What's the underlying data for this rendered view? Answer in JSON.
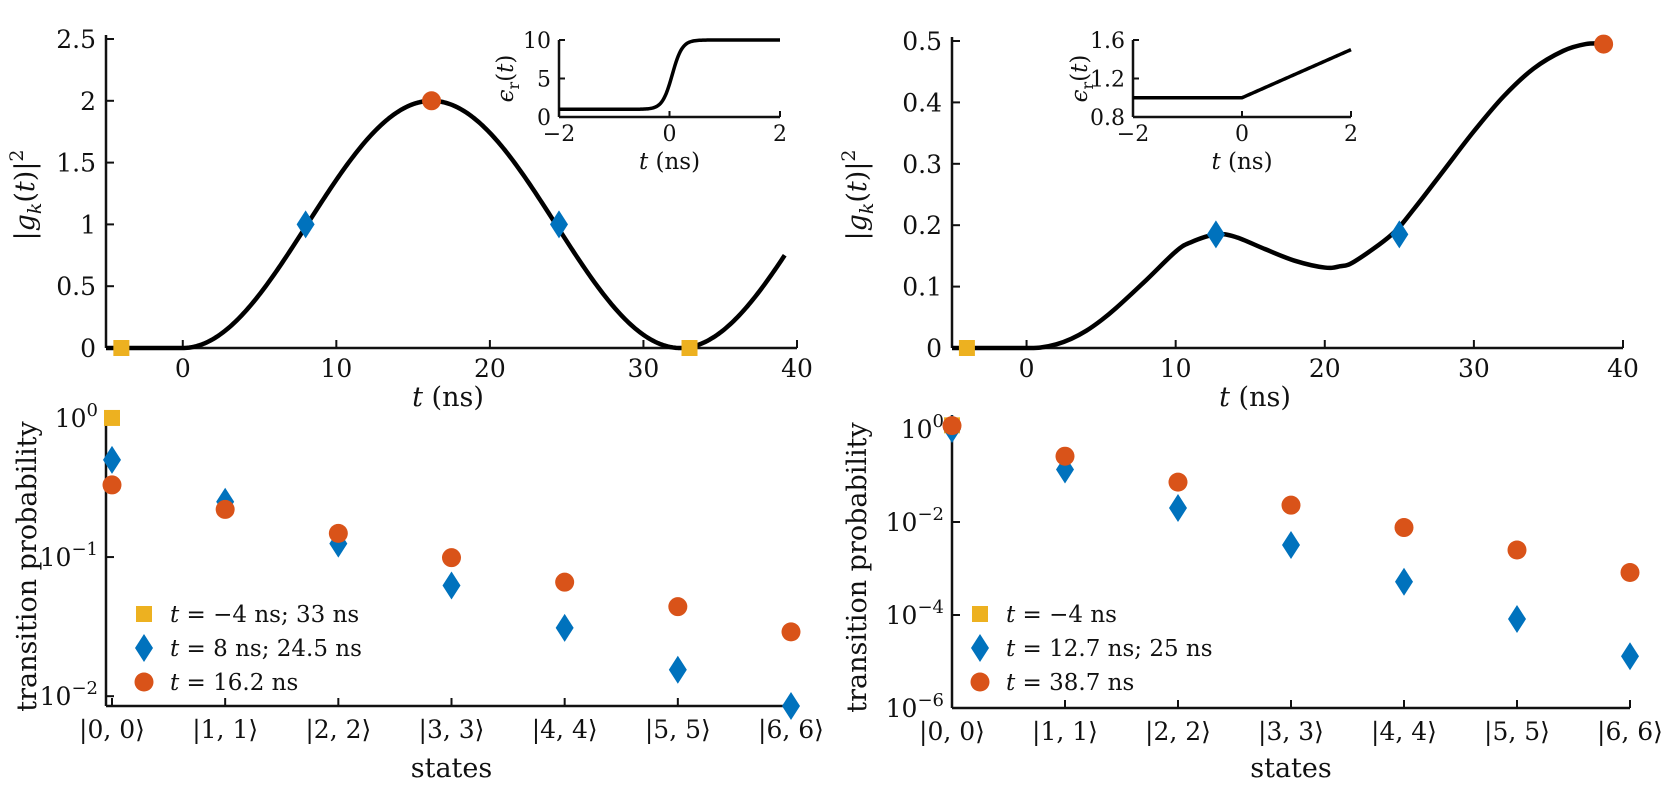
{
  "colors": {
    "square": "#EDB120",
    "diamond": "#0072BD",
    "circle": "#D95319",
    "line": "#000000"
  },
  "chart_data": [
    {
      "type": "line",
      "id": "top-left",
      "ylabel": "|g_k(t)|^2",
      "xlabel": "t (ns)",
      "xlim": [
        -5,
        40
      ],
      "ylim": [
        0,
        2.5
      ],
      "xticks": [
        0,
        10,
        20,
        30,
        40
      ],
      "xtick_labels": [
        "0",
        "10",
        "20",
        "30",
        "40"
      ],
      "yticks": [
        0,
        0.5,
        1,
        1.5,
        2,
        2.5
      ],
      "ytick_labels": [
        "0",
        "0.5",
        "1",
        "1.5",
        "2",
        "2.5"
      ],
      "curve": {
        "model": "2*sin^2(pi*t/32.4) for t>=0, 0 before",
        "amplitude": 2.0,
        "period_ns": 32.4,
        "t_end": 39.2
      },
      "markers": [
        {
          "shape": "square",
          "x": -4,
          "y": 0
        },
        {
          "shape": "square",
          "x": 33,
          "y": 0
        },
        {
          "shape": "diamond",
          "x": 8,
          "y": 1.0
        },
        {
          "shape": "diamond",
          "x": 24.5,
          "y": 1.0
        },
        {
          "shape": "circle",
          "x": 16.2,
          "y": 2.0
        }
      ],
      "inset": {
        "ylabel": "ε_r(t)",
        "xlabel": "t (ns)",
        "xlim": [
          -2,
          2
        ],
        "ylim": [
          0,
          10
        ],
        "xticks": [
          -2,
          0,
          2
        ],
        "xtick_labels": [
          "−2",
          "0",
          "2"
        ],
        "yticks": [
          0,
          5,
          10
        ],
        "ytick_labels": [
          "0",
          "5",
          "10"
        ],
        "curve": {
          "model": "1 + 9/(1+exp(-(t-0.05)/0.09))"
        }
      }
    },
    {
      "type": "line",
      "id": "top-right",
      "ylabel": "|g_k(t)|^2",
      "xlabel": "t (ns)",
      "xlim": [
        -5,
        40
      ],
      "ylim": [
        0,
        0.5
      ],
      "xticks": [
        0,
        10,
        20,
        30,
        40
      ],
      "xtick_labels": [
        "0",
        "10",
        "20",
        "30",
        "40"
      ],
      "yticks": [
        0,
        0.1,
        0.2,
        0.3,
        0.4,
        0.5
      ],
      "ytick_labels": [
        "0",
        "0.1",
        "0.2",
        "0.3",
        "0.4",
        "0.5"
      ],
      "curve": {
        "model": "smooth spline",
        "x": [
          -5,
          -4,
          0,
          1,
          2,
          3,
          4,
          5,
          6,
          8,
          10,
          11,
          12.7,
          14,
          16,
          18,
          20,
          21,
          22,
          24.5,
          26,
          28,
          30,
          32,
          34,
          36,
          37.5,
          38.7
        ],
        "y": [
          0,
          0,
          0,
          0.001,
          0.006,
          0.015,
          0.028,
          0.045,
          0.065,
          0.11,
          0.157,
          0.172,
          0.185,
          0.181,
          0.161,
          0.142,
          0.131,
          0.133,
          0.141,
          0.185,
          0.227,
          0.29,
          0.353,
          0.41,
          0.455,
          0.484,
          0.495,
          0.496
        ]
      },
      "markers": [
        {
          "shape": "square",
          "x": -4,
          "y": 0
        },
        {
          "shape": "diamond",
          "x": 12.7,
          "y": 0.185
        },
        {
          "shape": "diamond",
          "x": 25,
          "y": 0.185
        },
        {
          "shape": "circle",
          "x": 38.7,
          "y": 0.495
        }
      ],
      "inset": {
        "ylabel": "ε_r(t)",
        "xlabel": "t (ns)",
        "xlim": [
          -2,
          2
        ],
        "ylim": [
          0.8,
          1.6
        ],
        "xticks": [
          -2,
          0,
          2
        ],
        "xtick_labels": [
          "−2",
          "0",
          "2"
        ],
        "yticks": [
          0.8,
          1.2,
          1.6
        ],
        "ytick_labels": [
          "0.8",
          "1.2",
          "1.6"
        ],
        "curve": {
          "model": "1 for t<0, 1+0.25*t for t>=0"
        }
      }
    },
    {
      "type": "scatter",
      "id": "bottom-left",
      "yscale": "log",
      "ylabel": "transition probability",
      "xlabel": "states",
      "categories": [
        "|0, 0⟩",
        "|1, 1⟩",
        "|2, 2⟩",
        "|3, 3⟩",
        "|4, 4⟩",
        "|5, 5⟩",
        "|6, 6⟩"
      ],
      "ylim": [
        0.0085,
        1.05
      ],
      "ytick_values": [
        0.01,
        0.1,
        1
      ],
      "ytick_labels": [
        {
          "base": "10",
          "exp": "−2"
        },
        {
          "base": "10",
          "exp": "−1"
        },
        {
          "base": "10",
          "exp": "0"
        }
      ],
      "legend_position": "bottom-left",
      "series": [
        {
          "name": "t = −4 ns; 33 ns",
          "shape": "square",
          "values": [
            1.0,
            null,
            null,
            null,
            null,
            null,
            null
          ]
        },
        {
          "name": "t = 8 ns; 24.5 ns",
          "shape": "diamond",
          "values": [
            0.5,
            0.25,
            0.125,
            0.0625,
            0.031,
            0.0155,
            0.0085
          ]
        },
        {
          "name": "t = 16.2 ns",
          "shape": "circle",
          "values": [
            0.33,
            0.22,
            0.148,
            0.099,
            0.066,
            0.044,
            0.029
          ]
        }
      ]
    },
    {
      "type": "scatter",
      "id": "bottom-right",
      "yscale": "log",
      "ylabel": "transition probability",
      "xlabel": "states",
      "categories": [
        "|0, 0⟩",
        "|1, 1⟩",
        "|2, 2⟩",
        "|3, 3⟩",
        "|4, 4⟩",
        "|5, 5⟩",
        "|6, 6⟩"
      ],
      "ylim": [
        1e-06,
        2
      ],
      "ytick_values": [
        1e-06,
        0.0001,
        0.01,
        1
      ],
      "ytick_labels": [
        {
          "base": "10",
          "exp": "−6"
        },
        {
          "base": "10",
          "exp": "−4"
        },
        {
          "base": "10",
          "exp": "−2"
        },
        {
          "base": "10",
          "exp": "0"
        }
      ],
      "legend_position": "bottom-left",
      "series": [
        {
          "name": "t = −4 ns",
          "shape": "square",
          "values": [
            1.2,
            null,
            null,
            null,
            null,
            null,
            null
          ]
        },
        {
          "name": "t = 12.7 ns; 25 ns",
          "shape": "diamond",
          "values": [
            1.0,
            0.135,
            0.02,
            0.0032,
            0.00052,
            8.2e-05,
            1.3e-05
          ]
        },
        {
          "name": "t = 38.7 ns",
          "shape": "circle",
          "values": [
            1.18,
            0.26,
            0.072,
            0.023,
            0.0076,
            0.0025,
            0.00082
          ]
        }
      ]
    }
  ]
}
